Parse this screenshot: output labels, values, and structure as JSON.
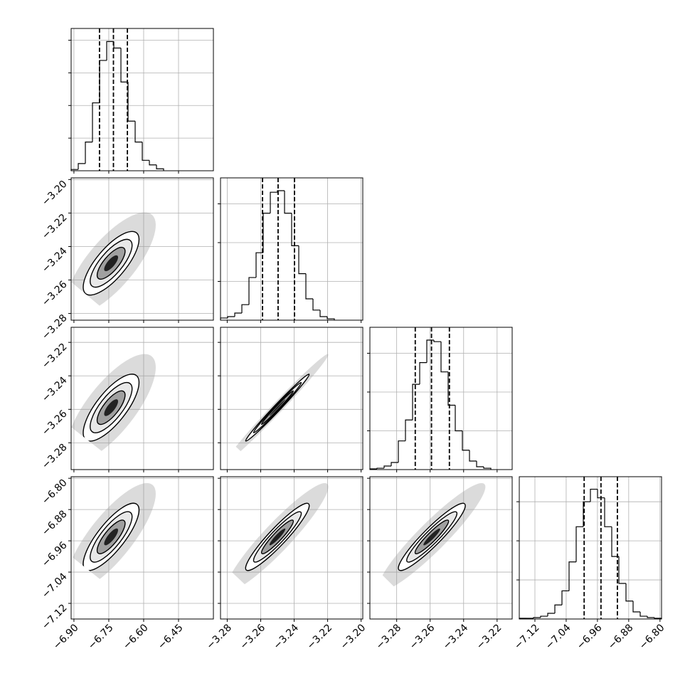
{
  "chart_data": {
    "type": "corner",
    "params": [
      {
        "lim": [
          -6.912,
          -6.3
        ],
        "ticks": [
          {
            "value": -6.9,
            "label": "−6.90"
          },
          {
            "value": -6.75,
            "label": "−6.75"
          },
          {
            "value": -6.6,
            "label": "−6.60"
          },
          {
            "value": -6.45,
            "label": "−6.45"
          }
        ],
        "mean": -6.74,
        "std": 0.06,
        "bins": [
          -6.912,
          -6.8814,
          -6.8508,
          -6.8202,
          -6.7896,
          -6.759,
          -6.7284,
          -6.6978,
          -6.6672,
          -6.6366,
          -6.606,
          -6.5754,
          -6.5448,
          -6.5142
        ],
        "counts": [
          20,
          110,
          440,
          1040,
          1690,
          1980,
          1880,
          1360,
          760,
          440,
          160,
          90,
          30
        ],
        "count_lim": [
          0,
          2180
        ],
        "count_ticks": [
          500,
          1000,
          1500,
          2000
        ],
        "quantiles": [
          -6.79,
          -6.73,
          -6.67
        ]
      },
      {
        "lim": [
          -3.284,
          -3.199
        ],
        "ticks": [
          {
            "value": -3.28,
            "label": "−3.28"
          },
          {
            "value": -3.26,
            "label": "−3.26"
          },
          {
            "value": -3.24,
            "label": "−3.24"
          },
          {
            "value": -3.22,
            "label": "−3.22"
          },
          {
            "value": -3.2,
            "label": "−3.20"
          }
        ],
        "mean": -3.25,
        "std": 0.0095,
        "bins": [
          -3.284,
          -3.27975,
          -3.2755,
          -3.27125,
          -3.267,
          -3.26275,
          -3.2585,
          -3.25425,
          -3.25,
          -3.24575,
          -3.2415,
          -3.23725,
          -3.233,
          -3.22875,
          -3.2245,
          -3.22025,
          -3.216
        ],
        "counts": [
          28,
          46,
          92,
          200,
          550,
          870,
          1380,
          1650,
          1670,
          1380,
          960,
          600,
          275,
          130,
          46,
          18
        ],
        "count_lim": [
          0,
          1835
        ],
        "count_ticks": [
          500,
          1000,
          1500
        ],
        "quantiles": [
          -3.2589,
          -3.2496,
          -3.2398
        ]
      },
      {
        "lim": [
          -3.296,
          -3.211
        ],
        "ticks": [
          {
            "value": -3.28,
            "label": "−3.28"
          },
          {
            "value": -3.26,
            "label": "−3.26"
          },
          {
            "value": -3.24,
            "label": "−3.24"
          },
          {
            "value": -3.22,
            "label": "−3.22"
          }
        ],
        "mean": -3.259,
        "std": 0.01,
        "bins": [
          -3.296,
          -3.29175,
          -3.2875,
          -3.28325,
          -3.279,
          -3.27475,
          -3.2705,
          -3.26625,
          -3.262,
          -3.25775,
          -3.2535,
          -3.24925,
          -3.245,
          -3.24075,
          -3.2365,
          -3.23225,
          -3.228,
          -3.22375
        ],
        "counts": [
          9,
          18,
          46,
          92,
          370,
          640,
          1100,
          1380,
          1670,
          1650,
          1260,
          830,
          500,
          250,
          110,
          37,
          18
        ],
        "count_lim": [
          0,
          1835
        ],
        "count_ticks": [
          500,
          1000,
          1500
        ],
        "quantiles": [
          -3.2689,
          -3.2592,
          -3.2485
        ]
      },
      {
        "lim": [
          -7.16,
          -6.796
        ],
        "ticks": [
          {
            "value": -7.12,
            "label": "−7.12"
          },
          {
            "value": -7.04,
            "label": "−7.04"
          },
          {
            "value": -6.96,
            "label": "−6.96"
          },
          {
            "value": -6.88,
            "label": "−6.88"
          },
          {
            "value": -6.8,
            "label": "−6.80"
          }
        ],
        "mean": -6.95,
        "std": 0.043,
        "bins": [
          -7.16,
          -7.1418,
          -7.1236,
          -7.1054,
          -7.0872,
          -7.069,
          -7.0508,
          -7.0326,
          -7.0144,
          -6.9962,
          -6.978,
          -6.9598,
          -6.9416,
          -6.9234,
          -6.9052,
          -6.887,
          -6.8688,
          -6.8506,
          -6.8324,
          -6.8142,
          -6.796
        ],
        "counts": [
          9,
          9,
          18,
          36,
          73,
          180,
          360,
          730,
          1180,
          1500,
          1660,
          1550,
          1180,
          800,
          455,
          230,
          91,
          36,
          18,
          9
        ],
        "count_lim": [
          0,
          1820
        ],
        "count_ticks": [
          500,
          1000,
          1500
        ],
        "quantiles": [
          -6.994,
          -6.951,
          -6.909
        ]
      }
    ],
    "pairs": [
      {
        "corr": 0.75
      },
      {
        "corr": 0.75
      },
      {
        "corr": 0.99
      },
      {
        "corr": 0.8
      },
      {
        "corr": 0.93
      },
      {
        "corr": 0.93
      }
    ],
    "grid": true
  }
}
